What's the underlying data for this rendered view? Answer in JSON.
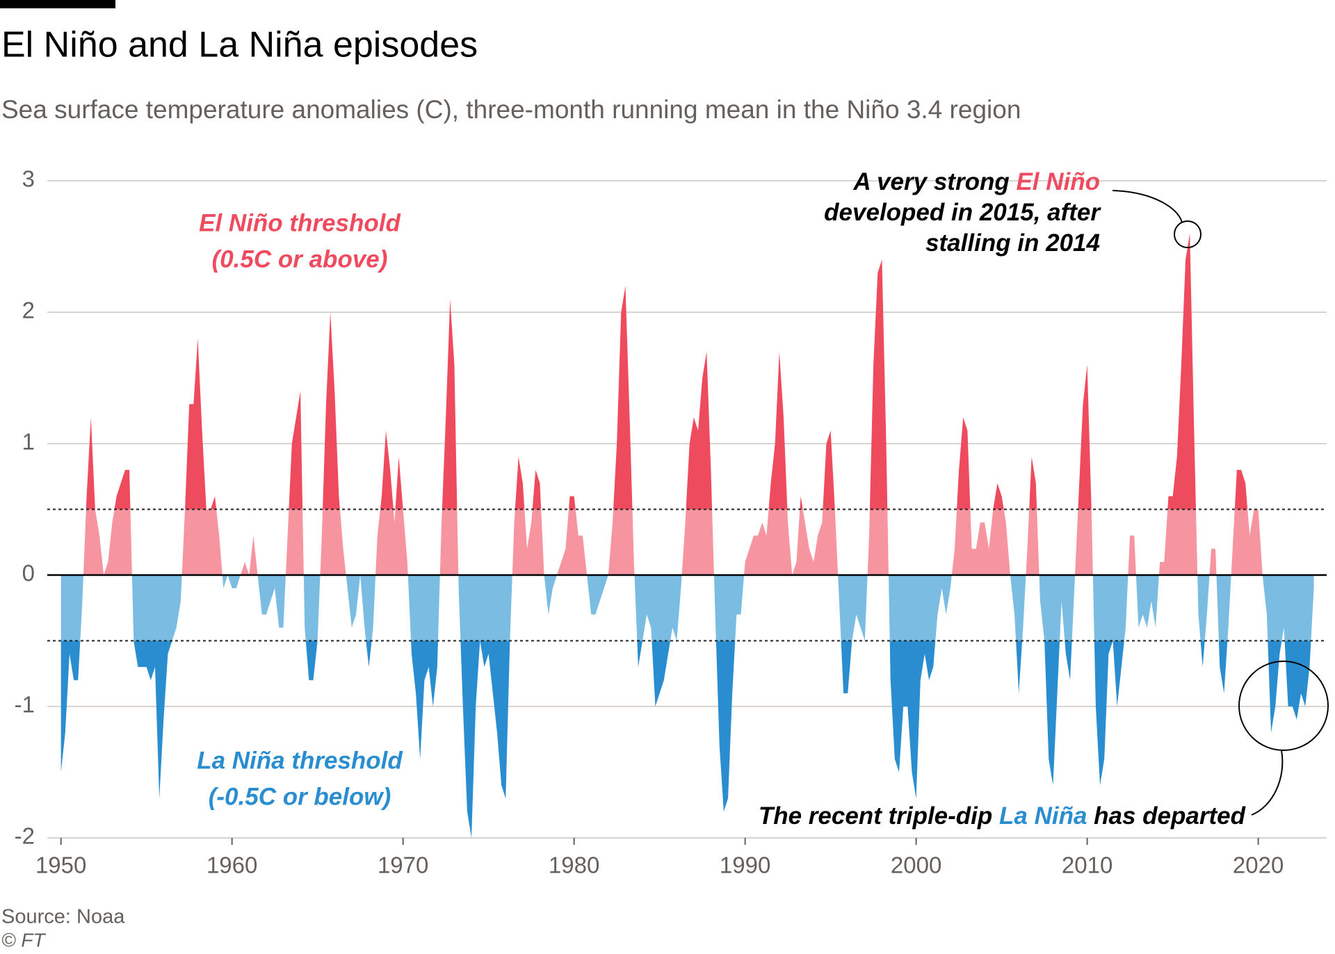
{
  "chart_data": {
    "type": "area",
    "title": "El Niño and La Niña episodes",
    "subtitle": "Sea surface temperature anomalies (C), three-month running mean in the Niño 3.4 region",
    "source": "Source: Noaa",
    "credit": "© FT",
    "el_nino_label": [
      "El Niño threshold",
      "(0.5C or above)"
    ],
    "la_nina_label": [
      "La Niña threshold",
      "(-0.5C or below)"
    ],
    "el_nino_threshold": 0.5,
    "la_nina_threshold": -0.5,
    "annotation_top": [
      [
        "A very strong ",
        "El Niño"
      ],
      [
        "developed in 2015, after"
      ],
      [
        "stalling in 2014"
      ]
    ],
    "annotation_bottom": [
      "The recent triple-dip ",
      "La Niña",
      " has departed"
    ],
    "el_nino_color": "#ef4b5e",
    "el_nino_weak_color": "#f6959f",
    "la_nina_weak_color": "#7bbde2",
    "la_nina_color": "#2a8dcf",
    "grid": true,
    "xlim": [
      1949.2,
      2024
    ],
    "ylim": [
      -2,
      3
    ],
    "xticks": [
      1950,
      1960,
      1970,
      1980,
      1990,
      2000,
      2010,
      2020
    ],
    "yticks": [
      -2,
      -1,
      0,
      1,
      2,
      3
    ],
    "x": [
      1950,
      1950.25,
      1950.5,
      1950.75,
      1951,
      1951.25,
      1951.5,
      1951.75,
      1952,
      1952.25,
      1952.5,
      1952.75,
      1953,
      1953.25,
      1953.5,
      1953.75,
      1954,
      1954.25,
      1954.5,
      1954.75,
      1955,
      1955.25,
      1955.5,
      1955.75,
      1956,
      1956.25,
      1956.5,
      1956.75,
      1957,
      1957.25,
      1957.5,
      1957.75,
      1958,
      1958.25,
      1958.5,
      1958.75,
      1959,
      1959.25,
      1959.5,
      1959.75,
      1960,
      1960.25,
      1960.5,
      1960.75,
      1961,
      1961.25,
      1961.5,
      1961.75,
      1962,
      1962.25,
      1962.5,
      1962.75,
      1963,
      1963.25,
      1963.5,
      1963.75,
      1964,
      1964.25,
      1964.5,
      1964.75,
      1965,
      1965.25,
      1965.5,
      1965.75,
      1966,
      1966.25,
      1966.5,
      1966.75,
      1967,
      1967.25,
      1967.5,
      1967.75,
      1968,
      1968.25,
      1968.5,
      1968.75,
      1969,
      1969.25,
      1969.5,
      1969.75,
      1970,
      1970.25,
      1970.5,
      1970.75,
      1971,
      1971.25,
      1971.5,
      1971.75,
      1972,
      1972.25,
      1972.5,
      1972.75,
      1973,
      1973.25,
      1973.5,
      1973.75,
      1974,
      1974.25,
      1974.5,
      1974.75,
      1975,
      1975.25,
      1975.5,
      1975.75,
      1976,
      1976.25,
      1976.5,
      1976.75,
      1977,
      1977.25,
      1977.5,
      1977.75,
      1978,
      1978.25,
      1978.5,
      1978.75,
      1979,
      1979.25,
      1979.5,
      1979.75,
      1980,
      1980.25,
      1980.5,
      1980.75,
      1981,
      1981.25,
      1981.5,
      1981.75,
      1982,
      1982.25,
      1982.5,
      1982.75,
      1983,
      1983.25,
      1983.5,
      1983.75,
      1984,
      1984.25,
      1984.5,
      1984.75,
      1985,
      1985.25,
      1985.5,
      1985.75,
      1986,
      1986.25,
      1986.5,
      1986.75,
      1987,
      1987.25,
      1987.5,
      1987.75,
      1988,
      1988.25,
      1988.5,
      1988.75,
      1989,
      1989.25,
      1989.5,
      1989.75,
      1990,
      1990.25,
      1990.5,
      1990.75,
      1991,
      1991.25,
      1991.5,
      1991.75,
      1992,
      1992.25,
      1992.5,
      1992.75,
      1993,
      1993.25,
      1993.5,
      1993.75,
      1994,
      1994.25,
      1994.5,
      1994.75,
      1995,
      1995.25,
      1995.5,
      1995.75,
      1996,
      1996.25,
      1996.5,
      1996.75,
      1997,
      1997.25,
      1997.5,
      1997.75,
      1998,
      1998.25,
      1998.5,
      1998.75,
      1999,
      1999.25,
      1999.5,
      1999.75,
      2000,
      2000.25,
      2000.5,
      2000.75,
      2001,
      2001.25,
      2001.5,
      2001.75,
      2002,
      2002.25,
      2002.5,
      2002.75,
      2003,
      2003.25,
      2003.5,
      2003.75,
      2004,
      2004.25,
      2004.5,
      2004.75,
      2005,
      2005.25,
      2005.5,
      2005.75,
      2006,
      2006.25,
      2006.5,
      2006.75,
      2007,
      2007.25,
      2007.5,
      2007.75,
      2008,
      2008.25,
      2008.5,
      2008.75,
      2009,
      2009.25,
      2009.5,
      2009.75,
      2010,
      2010.25,
      2010.5,
      2010.75,
      2011,
      2011.25,
      2011.5,
      2011.75,
      2012,
      2012.25,
      2012.5,
      2012.75,
      2013,
      2013.25,
      2013.5,
      2013.75,
      2014,
      2014.25,
      2014.5,
      2014.75,
      2015,
      2015.25,
      2015.5,
      2015.75,
      2016,
      2016.25,
      2016.5,
      2016.75,
      2017,
      2017.25,
      2017.5,
      2017.75,
      2018,
      2018.25,
      2018.5,
      2018.75,
      2019,
      2019.25,
      2019.5,
      2019.75,
      2020,
      2020.25,
      2020.5,
      2020.75,
      2021,
      2021.25,
      2021.5,
      2021.75,
      2022,
      2022.25,
      2022.5,
      2022.75,
      2023,
      2023.25
    ],
    "values": [
      -1.5,
      -1.2,
      -0.6,
      -0.8,
      -0.8,
      -0.2,
      0.6,
      1.2,
      0.5,
      0.3,
      0,
      0.1,
      0.4,
      0.6,
      0.7,
      0.8,
      0.8,
      -0.5,
      -0.7,
      -0.7,
      -0.7,
      -0.8,
      -0.7,
      -1.7,
      -1.1,
      -0.6,
      -0.5,
      -0.4,
      -0.2,
      0.5,
      1.3,
      1.3,
      1.8,
      1.1,
      0.5,
      0.5,
      0.6,
      0.3,
      -0.1,
      0,
      -0.1,
      -0.1,
      0,
      0.1,
      0,
      0.3,
      0,
      -0.3,
      -0.3,
      -0.2,
      -0.1,
      -0.4,
      -0.4,
      0.3,
      1.0,
      1.2,
      1.4,
      -0.4,
      -0.8,
      -0.8,
      -0.5,
      0.3,
      1.3,
      2.0,
      1.4,
      0.6,
      0.2,
      -0.1,
      -0.4,
      -0.3,
      0,
      -0.4,
      -0.7,
      -0.4,
      0.3,
      0.6,
      1.1,
      0.8,
      0.4,
      0.9,
      0.5,
      0.1,
      -0.6,
      -0.9,
      -1.4,
      -0.8,
      -0.7,
      -1.0,
      -0.7,
      0.4,
      1.2,
      2.1,
      1.6,
      -0.1,
      -1.0,
      -1.8,
      -2.0,
      -1.0,
      -0.5,
      -0.7,
      -0.6,
      -0.9,
      -1.2,
      -1.6,
      -1.7,
      -0.5,
      0.4,
      0.9,
      0.7,
      0.2,
      0.4,
      0.8,
      0.7,
      0,
      -0.3,
      -0.1,
      0,
      0.1,
      0.2,
      0.6,
      0.6,
      0.3,
      0.3,
      0,
      -0.3,
      -0.3,
      -0.2,
      -0.1,
      0,
      0.4,
      1.0,
      2.0,
      2.2,
      1.2,
      0.1,
      -0.7,
      -0.5,
      -0.3,
      -0.4,
      -1.0,
      -0.9,
      -0.8,
      -0.6,
      -0.4,
      -0.5,
      -0.1,
      0.4,
      1.0,
      1.2,
      1.1,
      1.5,
      1.7,
      0.8,
      -0.3,
      -1.3,
      -1.8,
      -1.7,
      -0.9,
      -0.3,
      -0.3,
      0.1,
      0.2,
      0.3,
      0.3,
      0.4,
      0.3,
      0.7,
      1.0,
      1.7,
      1.2,
      0.4,
      0,
      0.1,
      0.6,
      0.4,
      0.2,
      0.1,
      0.3,
      0.4,
      1.0,
      1.1,
      0.5,
      -0.2,
      -0.9,
      -0.9,
      -0.5,
      -0.3,
      -0.4,
      -0.5,
      0.3,
      1.6,
      2.3,
      2.4,
      1.0,
      -0.8,
      -1.4,
      -1.5,
      -1.0,
      -1.0,
      -1.5,
      -1.7,
      -0.8,
      -0.6,
      -0.8,
      -0.7,
      -0.3,
      -0.1,
      -0.3,
      -0.1,
      0.2,
      0.8,
      1.2,
      1.1,
      0.2,
      0.2,
      0.4,
      0.4,
      0.2,
      0.5,
      0.7,
      0.6,
      0.4,
      0,
      -0.3,
      -0.9,
      -0.4,
      0.2,
      0.9,
      0.7,
      -0.2,
      -0.5,
      -1.4,
      -1.6,
      -0.9,
      -0.2,
      -0.6,
      -0.8,
      -0.1,
      0.6,
      1.3,
      1.6,
      0.5,
      -1.0,
      -1.6,
      -1.4,
      -0.6,
      -0.5,
      -1.0,
      -0.7,
      -0.4,
      0.3,
      0.3,
      -0.4,
      -0.3,
      -0.4,
      -0.2,
      -0.4,
      0.1,
      0.1,
      0.6,
      0.6,
      0.9,
      1.6,
      2.4,
      2.6,
      1.1,
      -0.3,
      -0.7,
      -0.3,
      0.2,
      0.2,
      -0.7,
      -0.9,
      -0.4,
      0.2,
      0.8,
      0.8,
      0.7,
      0.3,
      0.5,
      0.5,
      0,
      -0.3,
      -1.2,
      -1.0,
      -0.6,
      -0.4,
      -1.0,
      -1.0,
      -1.1,
      -0.9,
      -1.0,
      -0.7,
      -0.1
    ]
  }
}
